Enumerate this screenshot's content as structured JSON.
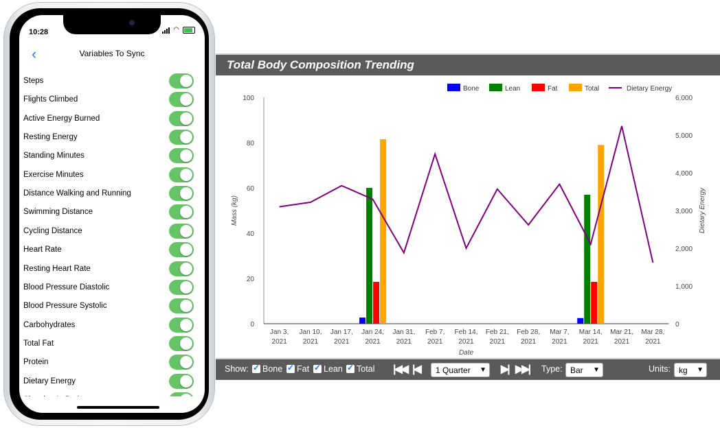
{
  "phone": {
    "status_time": "10:28",
    "nav_title": "Variables To Sync",
    "items": [
      {
        "label": "Steps",
        "on": true
      },
      {
        "label": "Flights Climbed",
        "on": true
      },
      {
        "label": "Active Energy Burned",
        "on": true
      },
      {
        "label": "Resting Energy",
        "on": true
      },
      {
        "label": "Standing Minutes",
        "on": true
      },
      {
        "label": "Exercise Minutes",
        "on": true
      },
      {
        "label": "Distance Walking and Running",
        "on": true
      },
      {
        "label": "Swimming Distance",
        "on": true
      },
      {
        "label": "Cycling Distance",
        "on": true
      },
      {
        "label": "Heart Rate",
        "on": true
      },
      {
        "label": "Resting Heart Rate",
        "on": true
      },
      {
        "label": "Blood Pressure Diastolic",
        "on": true
      },
      {
        "label": "Blood Pressure Systolic",
        "on": true
      },
      {
        "label": "Carbohydrates",
        "on": true
      },
      {
        "label": "Total Fat",
        "on": true
      },
      {
        "label": "Protein",
        "on": true
      },
      {
        "label": "Dietary Energy",
        "on": true
      },
      {
        "label": "Sleeping In Bed",
        "on": true
      }
    ],
    "colors": {
      "accent": "#2f7cf6",
      "toggle_on": "#65c466"
    }
  },
  "chart_panel": {
    "title": "Total Body Composition Trending",
    "toolbar": {
      "show_label": "Show:",
      "checkboxes": [
        {
          "label": "Bone",
          "checked": true
        },
        {
          "label": "Fat",
          "checked": true
        },
        {
          "label": "Lean",
          "checked": true
        },
        {
          "label": "Total",
          "checked": true
        }
      ],
      "first_icon": "skip-to-start-icon",
      "prev_icon": "step-back-icon",
      "period": "1 Quarter",
      "next_icon": "step-forward-icon",
      "last_icon": "skip-to-end-icon",
      "type_label": "Type:",
      "type_value": "Bar",
      "units_label": "Units:",
      "units_value": "kg"
    }
  },
  "chart_data": {
    "type": "bar",
    "combo": "bar + line (secondary axis)",
    "title": "Total Body Composition Trending",
    "xlabel": "Date",
    "ylabel": "Mass (kg)",
    "y2label": "Dietary Energy",
    "ylim": [
      0,
      100
    ],
    "y2lim": [
      0,
      6000
    ],
    "yticks": [
      "0",
      "20",
      "40",
      "60",
      "80",
      "100"
    ],
    "y2ticks": [
      "0",
      "1,000",
      "2,000",
      "3,000",
      "4,000",
      "5,000",
      "6,000"
    ],
    "categories": [
      [
        "Jan 3,",
        "2021"
      ],
      [
        "Jan 10,",
        "2021"
      ],
      [
        "Jan 17,",
        "2021"
      ],
      [
        "Jan 24,",
        "2021"
      ],
      [
        "Jan 31,",
        "2021"
      ],
      [
        "Feb 7,",
        "2021"
      ],
      [
        "Feb 14,",
        "2021"
      ],
      [
        "Feb 21,",
        "2021"
      ],
      [
        "Feb 28,",
        "2021"
      ],
      [
        "Mar 7,",
        "2021"
      ],
      [
        "Mar 14,",
        "2021"
      ],
      [
        "Mar 21,",
        "2021"
      ],
      [
        "Mar 28,",
        "2021"
      ]
    ],
    "legend_position": "top-right",
    "grid": false,
    "bar_series": [
      {
        "name": "Bone",
        "color": "#0000ff",
        "values": [
          null,
          null,
          null,
          2.7,
          null,
          null,
          null,
          null,
          null,
          null,
          2.5,
          null,
          null
        ]
      },
      {
        "name": "Lean",
        "color": "#008000",
        "values": [
          null,
          null,
          null,
          60,
          null,
          null,
          null,
          null,
          null,
          null,
          57,
          null,
          null
        ]
      },
      {
        "name": "Fat",
        "color": "#ff0000",
        "values": [
          null,
          null,
          null,
          18.5,
          null,
          null,
          null,
          null,
          null,
          null,
          18.5,
          null,
          null
        ]
      },
      {
        "name": "Total",
        "color": "#ffa500",
        "values": [
          null,
          null,
          null,
          81.5,
          null,
          null,
          null,
          null,
          null,
          null,
          79,
          null,
          null
        ]
      }
    ],
    "line_series": [
      {
        "name": "Dietary Energy",
        "color": "#800080",
        "axis": "right",
        "values": [
          3100,
          3220,
          3660,
          3300,
          1880,
          4500,
          2000,
          3570,
          2620,
          3700,
          2110,
          5240,
          1620
        ]
      }
    ]
  }
}
